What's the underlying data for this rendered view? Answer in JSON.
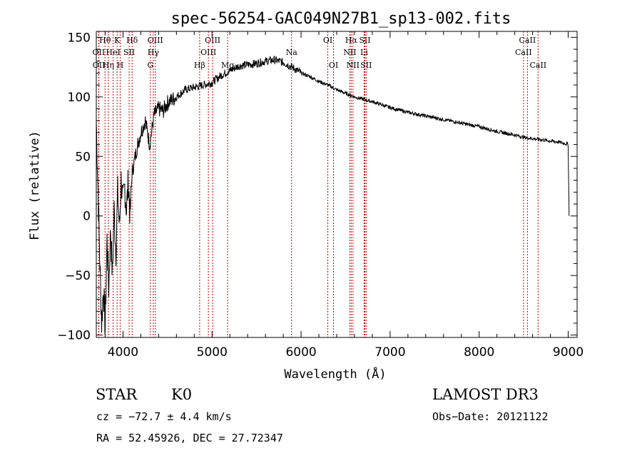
{
  "chart_data": {
    "type": "line",
    "title": "spec-56254-GAC049N27B1_sp13-002.fits",
    "xlabel": "Wavelength (Å)",
    "ylabel": "Flux (relative)",
    "xlim": [
      3700,
      9100
    ],
    "ylim": [
      -102,
      155
    ],
    "xticks": [
      4000,
      5000,
      6000,
      7000,
      8000,
      9000
    ],
    "xtick_labels": [
      "4000",
      "5000",
      "6000",
      "7000",
      "8000",
      "9000"
    ],
    "yticks": [
      -100,
      -50,
      0,
      50,
      100,
      150
    ],
    "ytick_labels": [
      "−100",
      "−50",
      "0",
      "50",
      "100",
      "150"
    ],
    "series": [
      {
        "name": "flux",
        "x": [
          3700,
          3720,
          3740,
          3760,
          3780,
          3800,
          3820,
          3840,
          3860,
          3880,
          3900,
          3920,
          3940,
          3960,
          3980,
          4000,
          4020,
          4040,
          4060,
          4080,
          4100,
          4150,
          4200,
          4250,
          4300,
          4350,
          4400,
          4450,
          4500,
          4600,
          4700,
          4800,
          4900,
          5000,
          5100,
          5200,
          5300,
          5400,
          5500,
          5600,
          5700,
          5800,
          5900,
          6000,
          6100,
          6200,
          6300,
          6400,
          6500,
          6600,
          6700,
          6800,
          7000,
          7200,
          7400,
          7600,
          7800,
          8000,
          8200,
          8400,
          8500,
          8600,
          8700,
          8800,
          8900,
          8960,
          9000,
          9010
        ],
        "y": [
          80,
          20,
          -40,
          -90,
          -60,
          -95,
          -20,
          -60,
          -10,
          -50,
          5,
          -30,
          20,
          -10,
          30,
          10,
          25,
          5,
          30,
          0,
          35,
          55,
          70,
          80,
          60,
          85,
          90,
          88,
          95,
          100,
          106,
          108,
          110,
          112,
          118,
          122,
          126,
          127,
          128,
          130,
          131,
          129,
          125,
          120,
          117,
          113,
          110,
          106,
          103,
          100,
          98,
          96,
          91,
          87,
          84,
          81,
          78,
          75,
          71,
          68,
          66,
          65,
          64,
          63,
          62,
          61,
          60,
          0
        ]
      }
    ],
    "spectral_lines": [
      {
        "label": "Hθ",
        "wavelength": 3798,
        "row": 1
      },
      {
        "label": "OII",
        "wavelength": 3727,
        "row": 2
      },
      {
        "label": "OII",
        "wavelength": 3729,
        "row": 3
      },
      {
        "label": "K",
        "wavelength": 3934,
        "row": 1
      },
      {
        "label": "HeI",
        "wavelength": 3889,
        "row": 2
      },
      {
        "label": "Hη",
        "wavelength": 3835,
        "row": 3
      },
      {
        "label": "Hδ",
        "wavelength": 4102,
        "row": 1
      },
      {
        "label": "SII",
        "wavelength": 4069,
        "row": 2
      },
      {
        "label": "H",
        "wavelength": 3968,
        "row": 3
      },
      {
        "label": "OIII",
        "wavelength": 4363,
        "row": 1
      },
      {
        "label": "Hγ",
        "wavelength": 4340,
        "row": 2
      },
      {
        "label": "G",
        "wavelength": 4307,
        "row": 3
      },
      {
        "label": "OIII",
        "wavelength": 5007,
        "row": 1
      },
      {
        "label": "OIII",
        "wavelength": 4959,
        "row": 2
      },
      {
        "label": "Hβ",
        "wavelength": 4861,
        "row": 3
      },
      {
        "label": "Mg",
        "wavelength": 5175,
        "row": 3
      },
      {
        "label": "Na",
        "wavelength": 5893,
        "row": 2
      },
      {
        "label": "OI",
        "wavelength": 6300,
        "row": 1
      },
      {
        "label": "OI",
        "wavelength": 6364,
        "row": 3
      },
      {
        "label": "Hα",
        "wavelength": 6563,
        "row": 1
      },
      {
        "label": "NII",
        "wavelength": 6548,
        "row": 2
      },
      {
        "label": "NII",
        "wavelength": 6583,
        "row": 3
      },
      {
        "label": "SII",
        "wavelength": 6716,
        "row": 1
      },
      {
        "label": "Li",
        "wavelength": 6708,
        "row": 2
      },
      {
        "label": "SII",
        "wavelength": 6731,
        "row": 3
      },
      {
        "label": "CaII",
        "wavelength": 8542,
        "row": 1
      },
      {
        "label": "CaII",
        "wavelength": 8498,
        "row": 2
      },
      {
        "label": "CaII",
        "wavelength": 8662,
        "row": 3
      }
    ],
    "line_color": "#000000",
    "marker_color": "#c00000"
  },
  "info": {
    "class": "STAR",
    "subclass": "K0",
    "survey": "LAMOST DR3",
    "cz": "cz = −72.7 ± 4.4 km/s",
    "obs_date": "Obs−Date: 20121122",
    "coords": "RA =  52.45926, DEC =  27.72347"
  }
}
